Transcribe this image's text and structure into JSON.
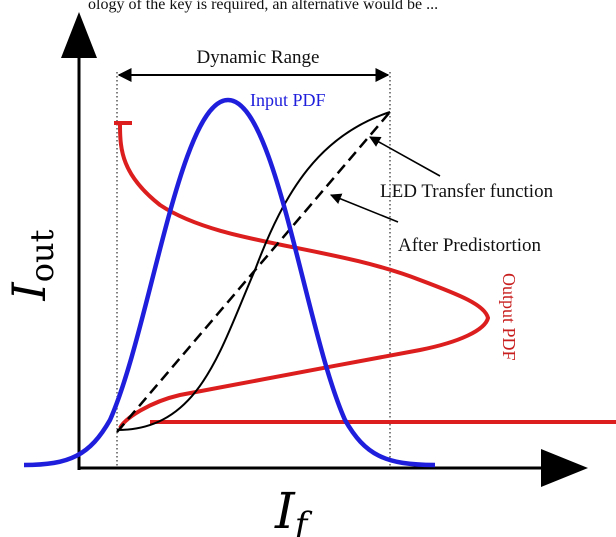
{
  "top_caption": "ology of the key is required, an alternative would be ...",
  "labels": {
    "dynamic_range": "Dynamic Range",
    "input_pdf": "Input PDF",
    "led_transfer": "LED Transfer function",
    "after_predistortion": "After Predistortion",
    "output_pdf": "Output PDF"
  },
  "axes": {
    "y_main": "I",
    "y_sub": "out",
    "x_main": "I",
    "x_sub": "f"
  },
  "colors": {
    "input_pdf": "#1e1edc",
    "output_pdf": "#dc1e1e",
    "transfer": "#000000",
    "predistortion": "#000000",
    "output_label": "#c81e1e",
    "input_label": "#1e1edc"
  }
}
